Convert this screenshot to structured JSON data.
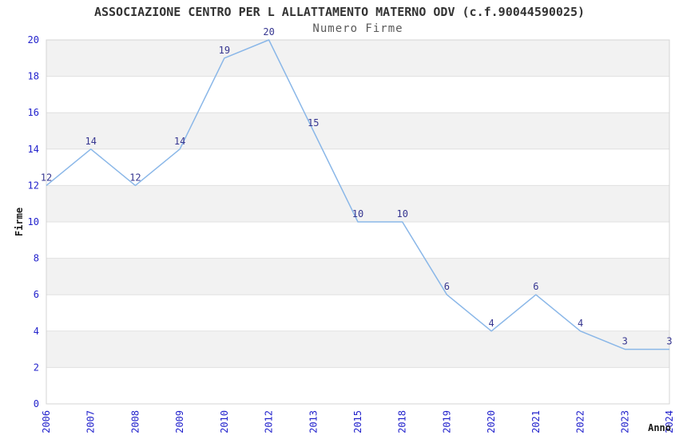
{
  "chart": {
    "title": "ASSOCIAZIONE CENTRO PER L ALLATTAMENTO MATERNO ODV (c.f.90044590025)",
    "subtitle": "Numero Firme",
    "xlabel": "Anno",
    "ylabel": "Firme"
  },
  "chart_data": {
    "type": "line",
    "title": "ASSOCIAZIONE CENTRO PER L ALLATTAMENTO MATERNO ODV (c.f.90044590025)",
    "subtitle": "Numero Firme",
    "xlabel": "Anno",
    "ylabel": "Firme",
    "categories": [
      "2006",
      "2007",
      "2008",
      "2009",
      "2010",
      "2012",
      "2013",
      "2015",
      "2018",
      "2019",
      "2020",
      "2021",
      "2022",
      "2023",
      "2024"
    ],
    "values": [
      12,
      14,
      12,
      14,
      19,
      20,
      15,
      10,
      10,
      6,
      4,
      6,
      4,
      3,
      3
    ],
    "ylim": [
      0,
      20
    ],
    "ytick_step": 2,
    "grid": "horizontal-bands-alternating",
    "legend": "none",
    "markers": "none",
    "data_labels": "above-points",
    "x_tick_rotation": 90,
    "colors": {
      "line": "#8ab7e8",
      "tick_labels": "#2222cc",
      "point_labels": "#363690",
      "band_gray": "#f2f2f2",
      "band_white": "#ffffff",
      "grid_line": "#e0e0e0",
      "plot_border": "#d4d4d4",
      "title": "#333333",
      "subtitle": "#595959",
      "axis_title": "#1a1a1a"
    }
  }
}
